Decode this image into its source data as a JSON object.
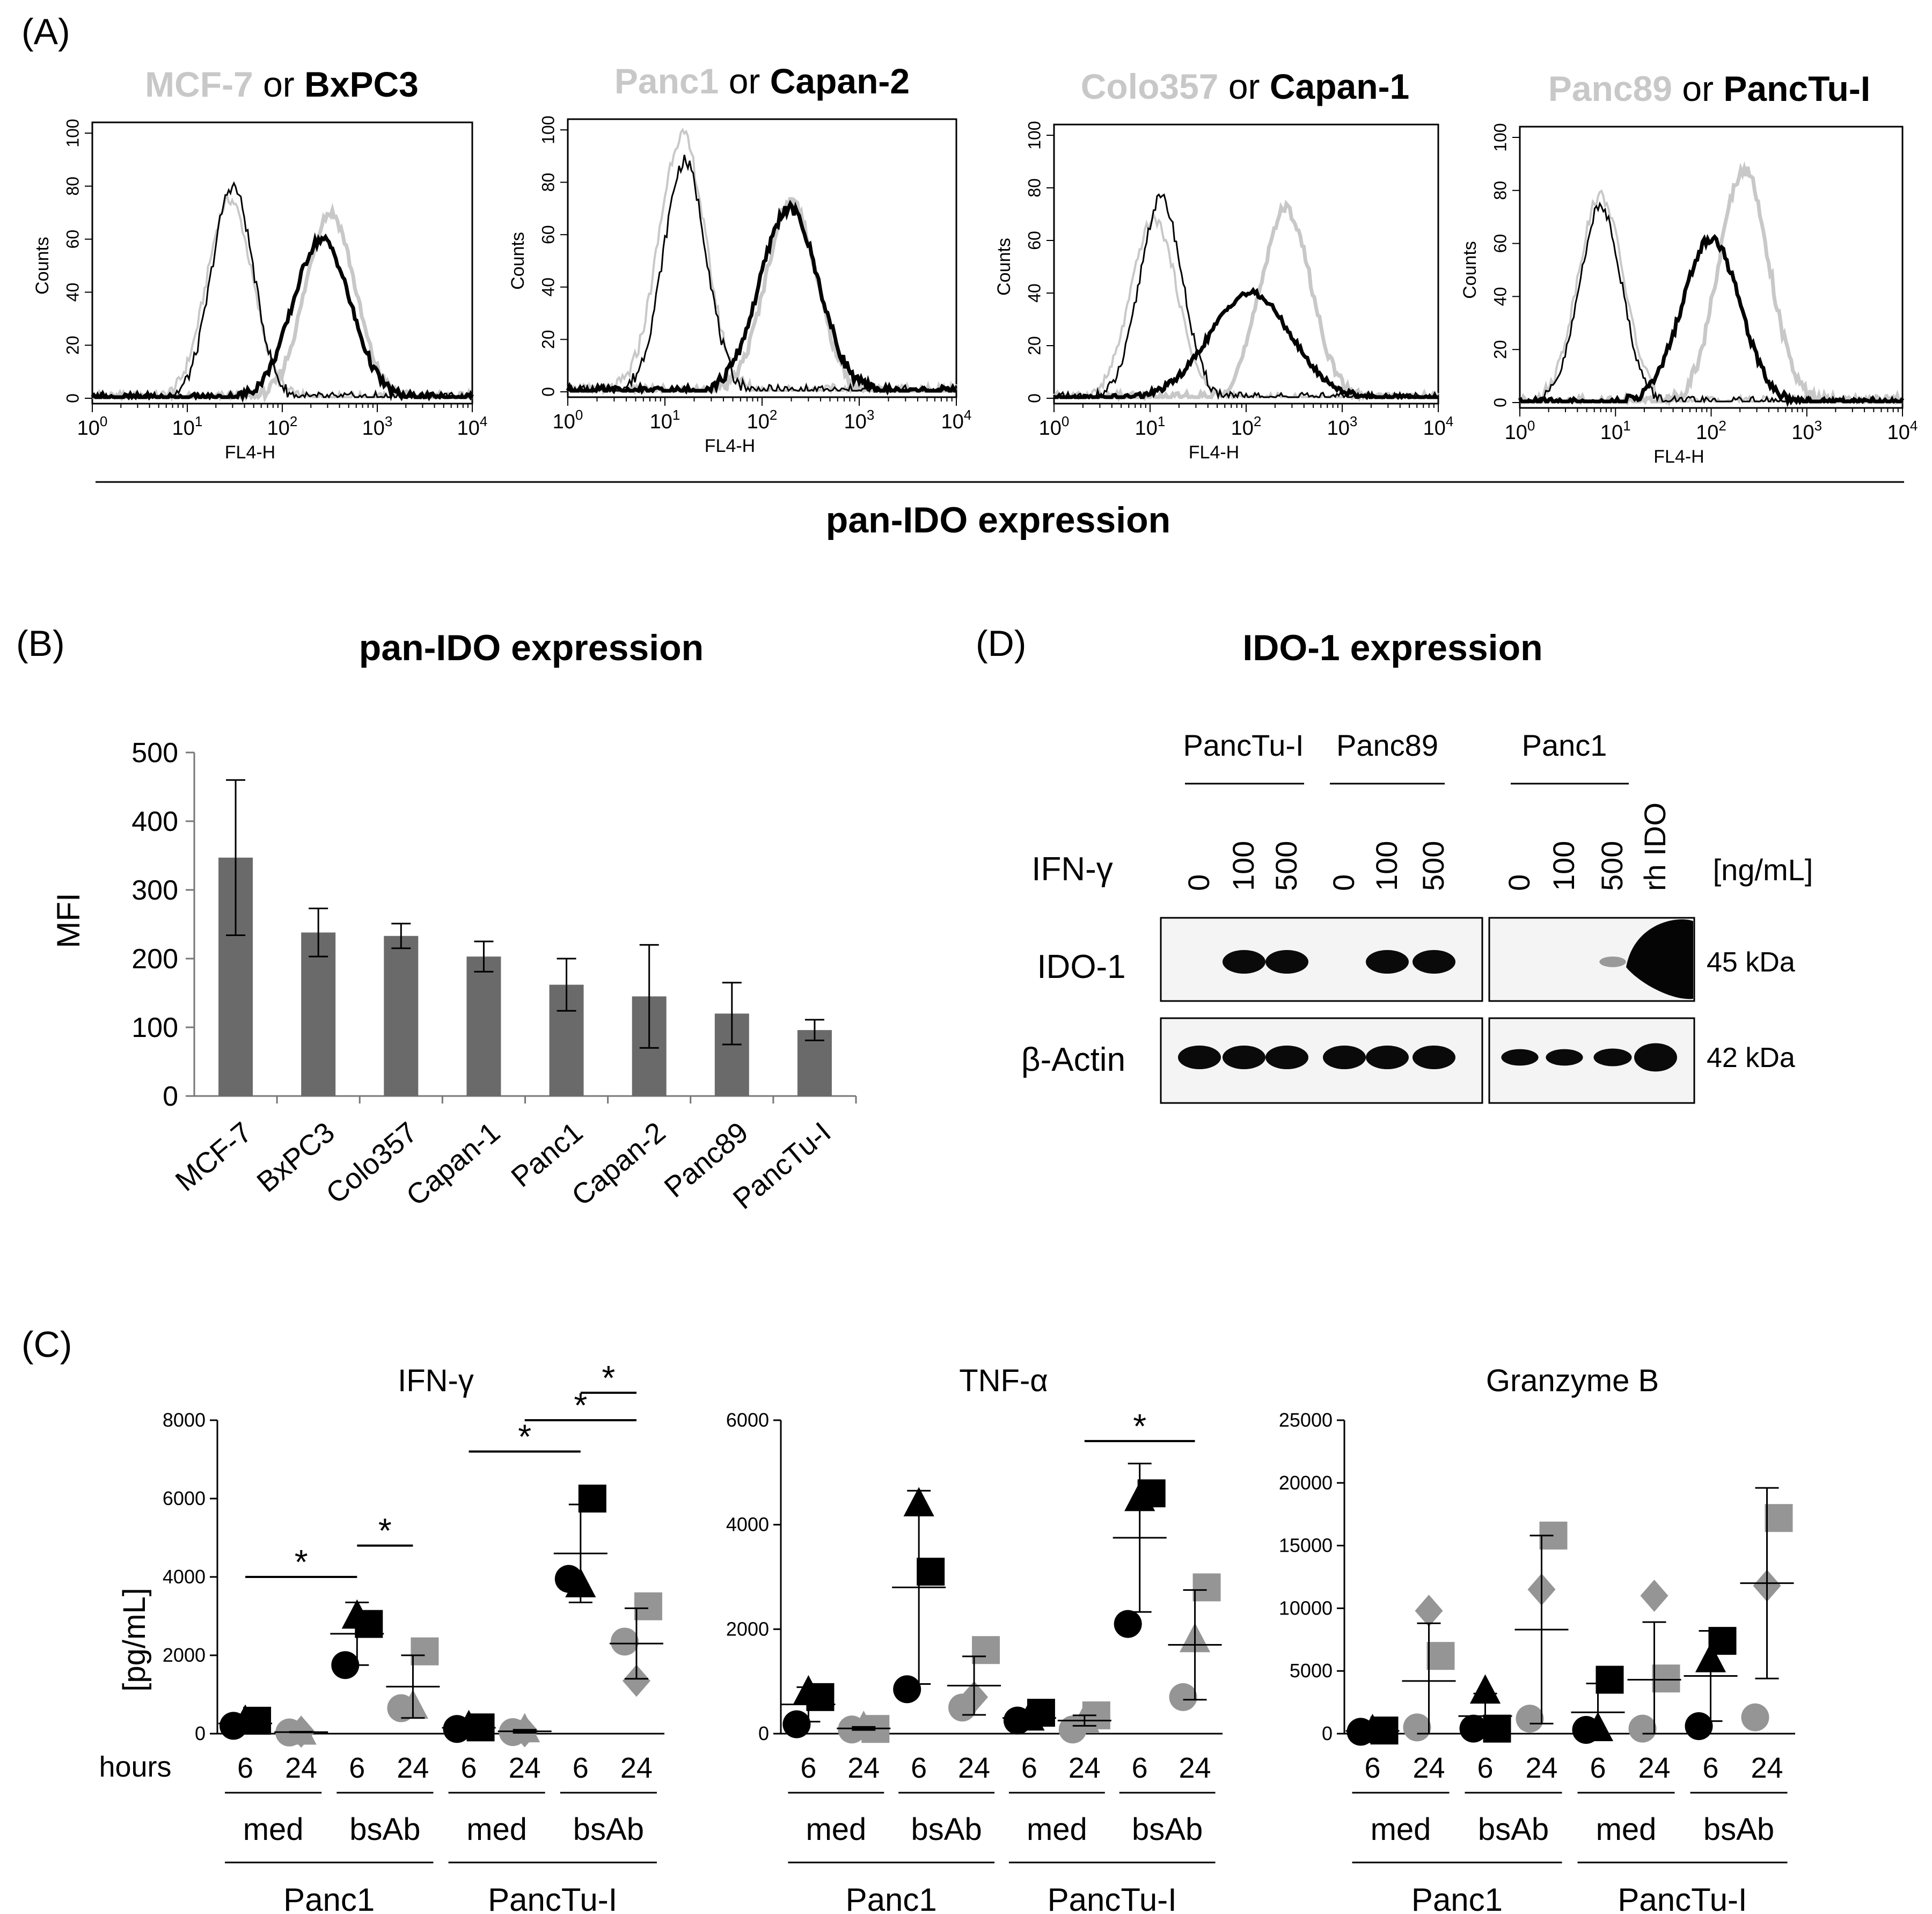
{
  "colors": {
    "light": "#c8c8c8",
    "dark": "#000000",
    "bar": "#6a6a6a",
    "marker_grey": "#959595"
  },
  "panels": {
    "A": {
      "label": "(A)"
    },
    "B": {
      "label": "(B)"
    },
    "C": {
      "label": "(C)"
    },
    "D": {
      "label": "(D)"
    }
  },
  "chart_data": [
    {
      "id": "A",
      "type": "line",
      "caption": "pan-IDO expression",
      "ylabel": "Counts",
      "xlabel": "FL4-H",
      "xscale": "log",
      "xlim": [
        1,
        10000
      ],
      "ylim": [
        0,
        100
      ],
      "x_ticks": [
        "0",
        "1",
        "2",
        "3",
        "4"
      ],
      "x_tick_base": "10",
      "y_ticks": [
        "0",
        "20",
        "40",
        "60",
        "80",
        "100"
      ],
      "histograms": [
        {
          "title_light": "MCF-7",
          "title_join": "or",
          "title_dark": "BxPC3",
          "light_iso_peak_x": 28,
          "light_iso_peak_y": 75,
          "dark_iso_peak_x": 30,
          "dark_iso_peak_y": 80,
          "light_stain_peak_x": 320,
          "light_stain_peak_y": 70,
          "dark_stain_peak_x": 260,
          "dark_stain_peak_y": 60
        },
        {
          "title_light": "Panc1",
          "title_join": "or",
          "title_dark": "Capan-2",
          "light_iso_peak_x": 15,
          "light_iso_peak_y": 98,
          "dark_iso_peak_x": 16,
          "dark_iso_peak_y": 88,
          "light_stain_peak_x": 200,
          "light_stain_peak_y": 73,
          "dark_stain_peak_x": 190,
          "dark_stain_peak_y": 70
        },
        {
          "title_light": "Colo357",
          "title_join": "or",
          "title_dark": "Capan-1",
          "light_iso_peak_x": 11,
          "light_iso_peak_y": 68,
          "dark_iso_peak_x": 13,
          "dark_iso_peak_y": 76,
          "light_stain_peak_x": 260,
          "light_stain_peak_y": 72,
          "dark_stain_peak_x": 110,
          "dark_stain_peak_y": 40
        },
        {
          "title_light": "Panc89",
          "title_join": "or",
          "title_dark": "PancTu-I",
          "light_iso_peak_x": 7,
          "light_iso_peak_y": 78,
          "dark_iso_peak_x": 7,
          "dark_iso_peak_y": 74,
          "light_stain_peak_x": 220,
          "light_stain_peak_y": 88,
          "dark_stain_peak_x": 100,
          "dark_stain_peak_y": 62
        }
      ]
    },
    {
      "id": "B",
      "type": "bar",
      "title": "pan-IDO expression",
      "ylabel": "MFI",
      "xlabel": "",
      "ylim": [
        0,
        500
      ],
      "y_ticks": [
        0,
        100,
        200,
        300,
        400,
        500
      ],
      "categories": [
        "MCF-7",
        "BxPC3",
        "Colo357",
        "Capan-1",
        "Panc1",
        "Capan-2",
        "Panc89",
        "PancTu-I"
      ],
      "values": [
        347,
        238,
        233,
        203,
        162,
        145,
        120,
        96
      ],
      "errors": [
        113,
        35,
        18,
        22,
        38,
        75,
        45,
        15
      ]
    },
    {
      "id": "C",
      "type": "scatter",
      "x_row_label": "hours",
      "ylabel": "[pg/mL]",
      "time_labels": [
        "6",
        "24",
        "6",
        "24",
        "6",
        "24",
        "6",
        "24"
      ],
      "treatment_labels": [
        "med",
        "bsAb",
        "med",
        "bsAb"
      ],
      "cell_lines": [
        "Panc1",
        "PancTu-I"
      ],
      "plots": [
        {
          "title": "IFN-γ",
          "ylim": [
            0,
            8000
          ],
          "y_ticks": [
            "0",
            "2000",
            "4000",
            "6000",
            "8000"
          ],
          "groups": [
            {
              "points": [
                {
                  "shape": "circle",
                  "v": 200
                },
                {
                  "shape": "triangle",
                  "v": 320
                },
                {
                  "shape": "square",
                  "v": 330
                }
              ],
              "mean": 260,
              "sd": 60,
              "color": "dark"
            },
            {
              "points": [
                {
                  "shape": "circle",
                  "v": 30
                },
                {
                  "shape": "triangle",
                  "v": 40
                },
                {
                  "shape": "diamond",
                  "v": 50
                }
              ],
              "mean": 40,
              "sd": 10,
              "color": "grey"
            },
            {
              "points": [
                {
                  "shape": "circle",
                  "v": 1750
                },
                {
                  "shape": "triangle",
                  "v": 3000
                },
                {
                  "shape": "square",
                  "v": 2800
                }
              ],
              "mean": 2550,
              "sd": 800,
              "color": "dark"
            },
            {
              "points": [
                {
                  "shape": "circle",
                  "v": 650
                },
                {
                  "shape": "triangle",
                  "v": 700
                },
                {
                  "shape": "square",
                  "v": 2100
                }
              ],
              "mean": 1200,
              "sd": 800,
              "color": "grey"
            },
            {
              "points": [
                {
                  "shape": "circle",
                  "v": 120
                },
                {
                  "shape": "triangle",
                  "v": 180
                },
                {
                  "shape": "square",
                  "v": 160
                }
              ],
              "mean": 150,
              "sd": 40,
              "color": "dark"
            },
            {
              "points": [
                {
                  "shape": "circle",
                  "v": 40
                },
                {
                  "shape": "triangle",
                  "v": 100
                },
                {
                  "shape": "diamond",
                  "v": 60
                }
              ],
              "mean": 60,
              "sd": 40,
              "color": "grey"
            },
            {
              "points": [
                {
                  "shape": "circle",
                  "v": 3950
                },
                {
                  "shape": "triangle",
                  "v": 3800
                },
                {
                  "shape": "square",
                  "v": 6000
                }
              ],
              "mean": 4600,
              "sd": 1250,
              "color": "dark"
            },
            {
              "points": [
                {
                  "shape": "circle",
                  "v": 2350
                },
                {
                  "shape": "diamond",
                  "v": 1350
                },
                {
                  "shape": "square",
                  "v": 3250
                }
              ],
              "mean": 2300,
              "sd": 900,
              "color": "grey"
            }
          ],
          "significance": [
            {
              "from": 0,
              "to": 2,
              "value": 4000,
              "label": "*"
            },
            {
              "from": 2,
              "to": 3,
              "value": 4800,
              "label": "*"
            },
            {
              "from": 4,
              "to": 6,
              "value": 7200,
              "label": "*"
            },
            {
              "from": 5,
              "to": 7,
              "value": 8000,
              "label": "*"
            },
            {
              "from": 6,
              "to": 7,
              "value": 8700,
              "label": "*"
            }
          ]
        },
        {
          "title": "TNF-α",
          "ylim": [
            0,
            6000
          ],
          "y_ticks": [
            "0",
            "2000",
            "4000",
            "6000"
          ],
          "groups": [
            {
              "points": [
                {
                  "shape": "circle",
                  "v": 180
                },
                {
                  "shape": "triangle",
                  "v": 800
                },
                {
                  "shape": "square",
                  "v": 700
                }
              ],
              "mean": 560,
              "sd": 330,
              "color": "dark"
            },
            {
              "points": [
                {
                  "shape": "circle",
                  "v": 80
                },
                {
                  "shape": "triangle",
                  "v": 120
                },
                {
                  "shape": "square",
                  "v": 90
                }
              ],
              "mean": 100,
              "sd": 30,
              "color": "grey"
            },
            {
              "points": [
                {
                  "shape": "circle",
                  "v": 850
                },
                {
                  "shape": "triangle",
                  "v": 4400
                },
                {
                  "shape": "square",
                  "v": 3100
                }
              ],
              "mean": 2800,
              "sd": 1850,
              "color": "dark"
            },
            {
              "points": [
                {
                  "shape": "circle",
                  "v": 500
                },
                {
                  "shape": "diamond",
                  "v": 700
                },
                {
                  "shape": "square",
                  "v": 1600
                }
              ],
              "mean": 920,
              "sd": 560,
              "color": "grey"
            },
            {
              "points": [
                {
                  "shape": "circle",
                  "v": 250
                },
                {
                  "shape": "triangle",
                  "v": 300
                },
                {
                  "shape": "square",
                  "v": 400
                }
              ],
              "mean": 300,
              "sd": 80,
              "color": "dark"
            },
            {
              "points": [
                {
                  "shape": "circle",
                  "v": 80
                },
                {
                  "shape": "triangle",
                  "v": 250
                },
                {
                  "shape": "square",
                  "v": 350
                }
              ],
              "mean": 250,
              "sd": 100,
              "color": "grey"
            },
            {
              "points": [
                {
                  "shape": "circle",
                  "v": 2100
                },
                {
                  "shape": "triangle",
                  "v": 4500
                },
                {
                  "shape": "square",
                  "v": 4600
                }
              ],
              "mean": 3750,
              "sd": 1420,
              "color": "dark"
            },
            {
              "points": [
                {
                  "shape": "circle",
                  "v": 700
                },
                {
                  "shape": "triangle",
                  "v": 1800
                },
                {
                  "shape": "square",
                  "v": 2800
                }
              ],
              "mean": 1700,
              "sd": 1050,
              "color": "grey"
            }
          ],
          "significance": [
            {
              "from": 5,
              "to": 7,
              "value": 5600,
              "label": "*"
            }
          ]
        },
        {
          "title": "Granzyme B",
          "ylim": [
            0,
            25000
          ],
          "y_ticks": [
            "0",
            "5000",
            "10000",
            "15000",
            "20000",
            "25000"
          ],
          "groups": [
            {
              "points": [
                {
                  "shape": "circle",
                  "v": 150
                },
                {
                  "shape": "triangle",
                  "v": 250
                },
                {
                  "shape": "square",
                  "v": 250
                }
              ],
              "mean": 220,
              "sd": 60,
              "color": "dark"
            },
            {
              "points": [
                {
                  "shape": "circle",
                  "v": 500
                },
                {
                  "shape": "diamond",
                  "v": 9800
                },
                {
                  "shape": "square",
                  "v": 6200
                }
              ],
              "mean": 4200,
              "sd": 4600,
              "color": "grey"
            },
            {
              "points": [
                {
                  "shape": "circle",
                  "v": 400
                },
                {
                  "shape": "triangle",
                  "v": 3400
                },
                {
                  "shape": "square",
                  "v": 400
                }
              ],
              "mean": 1400,
              "sd": 1800,
              "color": "dark"
            },
            {
              "points": [
                {
                  "shape": "circle",
                  "v": 1200
                },
                {
                  "shape": "diamond",
                  "v": 11500
                },
                {
                  "shape": "square",
                  "v": 15800
                }
              ],
              "mean": 8300,
              "sd": 7500,
              "color": "grey"
            },
            {
              "points": [
                {
                  "shape": "circle",
                  "v": 300
                },
                {
                  "shape": "triangle",
                  "v": 400
                },
                {
                  "shape": "square",
                  "v": 4300
                }
              ],
              "mean": 1700,
              "sd": 2300,
              "color": "dark"
            },
            {
              "points": [
                {
                  "shape": "circle",
                  "v": 400
                },
                {
                  "shape": "diamond",
                  "v": 11000
                },
                {
                  "shape": "square",
                  "v": 4400
                }
              ],
              "mean": 4300,
              "sd": 4600,
              "color": "grey"
            },
            {
              "points": [
                {
                  "shape": "circle",
                  "v": 600
                },
                {
                  "shape": "triangle",
                  "v": 5900
                },
                {
                  "shape": "square",
                  "v": 7400
                }
              ],
              "mean": 4600,
              "sd": 3600,
              "color": "dark"
            },
            {
              "points": [
                {
                  "shape": "circle",
                  "v": 1300
                },
                {
                  "shape": "diamond",
                  "v": 11800
                },
                {
                  "shape": "square",
                  "v": 17200
                }
              ],
              "mean": 12000,
              "sd": 7600,
              "color": "grey"
            }
          ],
          "significance": []
        }
      ]
    }
  ],
  "western_blot": {
    "title": "IDO-1 expression",
    "cell_lines": [
      "PancTu-I",
      "Panc89",
      "Panc1"
    ],
    "treatment_label": "IFN-γ",
    "lane_labels": [
      "0",
      "100",
      "500",
      "0",
      "100",
      "500",
      "0",
      "100",
      "500",
      "rh IDO"
    ],
    "unit_label": "[ng/mL]",
    "rows": [
      {
        "label": "IDO-1",
        "mw": "45 kDa",
        "band_intensity": [
          0,
          1,
          1,
          0,
          1,
          1,
          0,
          0,
          0.15,
          3
        ]
      },
      {
        "label": "β-Actin",
        "mw": "42 kDa",
        "band_intensity": [
          1,
          1,
          1,
          1,
          1,
          1,
          0.7,
          0.7,
          0.75,
          1.2
        ]
      }
    ]
  }
}
